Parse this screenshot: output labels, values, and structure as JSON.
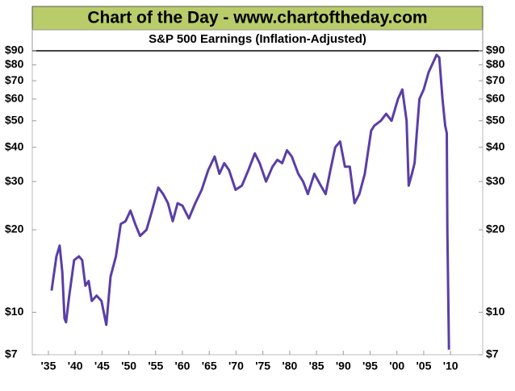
{
  "chart_data": {
    "type": "line",
    "title": "Chart of the Day - www.chartoftheday.com",
    "subtitle": "S&P 500 Earnings (Inflation-Adjusted)",
    "log_y": true,
    "grid": false,
    "xlim": [
      1932,
      2016
    ],
    "ylim": [
      7,
      90
    ],
    "xticks": [
      {
        "value": 1935,
        "label": "'35"
      },
      {
        "value": 1940,
        "label": "'40"
      },
      {
        "value": 1945,
        "label": "'45"
      },
      {
        "value": 1950,
        "label": "'50"
      },
      {
        "value": 1955,
        "label": "'55"
      },
      {
        "value": 1960,
        "label": "'60"
      },
      {
        "value": 1965,
        "label": "'65"
      },
      {
        "value": 1970,
        "label": "'70"
      },
      {
        "value": 1975,
        "label": "'75"
      },
      {
        "value": 1980,
        "label": "'80"
      },
      {
        "value": 1985,
        "label": "'85"
      },
      {
        "value": 1990,
        "label": "'90"
      },
      {
        "value": 1995,
        "label": "'95"
      },
      {
        "value": 2000,
        "label": "'00"
      },
      {
        "value": 2005,
        "label": "'05"
      },
      {
        "value": 2010,
        "label": "'10"
      }
    ],
    "yticks": [
      {
        "value": 90,
        "label": "$90"
      },
      {
        "value": 80,
        "label": "$80"
      },
      {
        "value": 70,
        "label": "$70"
      },
      {
        "value": 60,
        "label": "$60"
      },
      {
        "value": 50,
        "label": "$50"
      },
      {
        "value": 40,
        "label": "$40"
      },
      {
        "value": 30,
        "label": "$30"
      },
      {
        "value": 20,
        "label": "$20"
      },
      {
        "value": 10,
        "label": "$10"
      },
      {
        "value": 7,
        "label": "$7"
      }
    ],
    "series": [
      {
        "color": "#5a3ea6",
        "x": [
          1935.6,
          1936.5,
          1937.1,
          1937.6,
          1938,
          1938.3,
          1938.9,
          1939.8,
          1940.7,
          1941.3,
          1941.9,
          1942.5,
          1943.1,
          1944,
          1944.9,
          1945.8,
          1946.6,
          1947.6,
          1948.5,
          1949.4,
          1950.3,
          1951.2,
          1952.1,
          1953.3,
          1954.2,
          1955.5,
          1956.4,
          1957.3,
          1958.2,
          1959.1,
          1960,
          1961.2,
          1962.4,
          1963.6,
          1964.8,
          1966,
          1966.9,
          1967.8,
          1968.7,
          1969.9,
          1971.1,
          1972.3,
          1973.5,
          1974.4,
          1975.6,
          1976.8,
          1977.7,
          1978.6,
          1979.5,
          1980.4,
          1981.6,
          1982.5,
          1983.4,
          1984.6,
          1985.8,
          1986.7,
          1987.6,
          1988.5,
          1989.4,
          1990.3,
          1991.2,
          1992.1,
          1993,
          1994,
          1995.2,
          1995.8,
          1997,
          1998,
          1999,
          2000.2,
          2001,
          2001.8,
          2002.2,
          2002.8,
          2003.3,
          2003.7,
          2004.2,
          2005,
          2005.9,
          2006.8,
          2007.4,
          2007.9,
          2008.5,
          2009,
          2009.3,
          2009.4,
          2009.7
        ],
        "values": [
          12,
          16,
          17.5,
          14,
          9.5,
          9.2,
          11.5,
          15.5,
          16,
          15.5,
          12.5,
          13,
          11,
          11.5,
          11,
          9,
          13.5,
          16,
          21,
          21.5,
          23.5,
          21,
          19,
          20,
          23,
          28.5,
          27,
          25,
          21.5,
          25,
          24.5,
          22,
          25,
          28,
          33,
          37,
          32,
          35,
          33,
          28,
          29,
          33,
          38,
          35,
          30,
          34,
          36,
          35,
          39,
          37,
          32,
          30,
          27,
          32,
          29,
          27,
          33,
          40,
          42,
          34,
          34,
          25,
          27,
          32,
          46,
          48,
          50,
          53,
          50,
          60,
          65,
          50,
          29,
          32,
          35,
          45,
          60,
          65,
          75,
          82,
          87,
          85,
          60,
          48,
          45,
          20,
          7.3
        ]
      }
    ]
  }
}
